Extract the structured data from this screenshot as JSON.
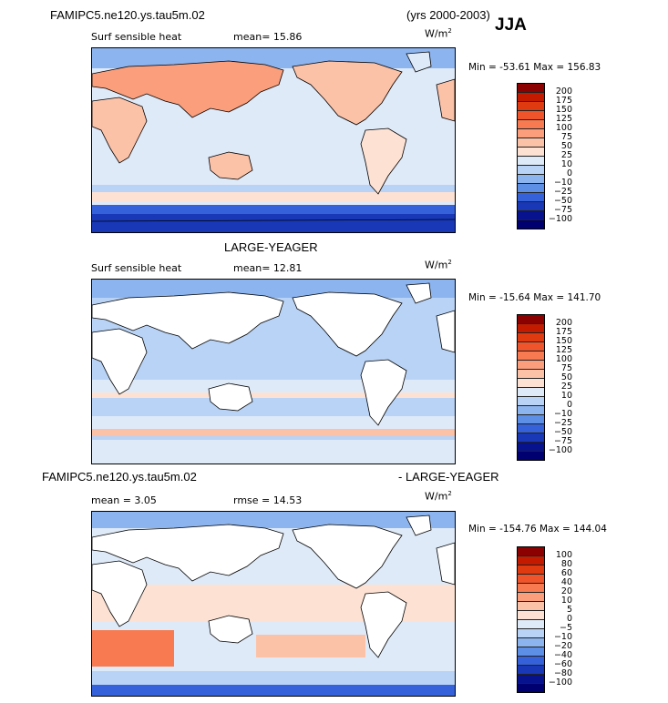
{
  "header": {
    "case_title": "FAMIPC5.ne120.ys.tau5m.02",
    "years": "(yrs 2000-2003)",
    "season": "JJA"
  },
  "panels": [
    {
      "id": "panel-1",
      "variable": "Surf sensible heat",
      "stat1": "mean=  15.86",
      "units": "W/m",
      "units_exp": "2",
      "minmax": "Min = -53.61 Max = 156.83",
      "colorbar_labels": [
        "200",
        "175",
        "150",
        "125",
        "100",
        "75",
        "50",
        "25",
        "10",
        "0",
        "−10",
        "−25",
        "−50",
        "−75",
        "−100"
      ]
    },
    {
      "id": "panel-2",
      "title": "LARGE-YEAGER",
      "variable": "Surf sensible heat",
      "stat1": "mean=  12.81",
      "units": "W/m",
      "units_exp": "2",
      "minmax": "Min = -15.64 Max = 141.70",
      "colorbar_labels": [
        "200",
        "175",
        "150",
        "125",
        "100",
        "75",
        "50",
        "25",
        "10",
        "0",
        "−10",
        "−25",
        "−50",
        "−75",
        "−100"
      ]
    },
    {
      "id": "panel-3",
      "title_left": "FAMIPC5.ne120.ys.tau5m.02",
      "title_right": "- LARGE-YEAGER",
      "stat1": "mean =    3.05",
      "stat2": "rmse =  14.53",
      "units": "W/m",
      "units_exp": "2",
      "minmax": "Min = -154.76 Max = 144.04",
      "colorbar_labels": [
        "100",
        "80",
        "60",
        "40",
        "20",
        "10",
        "5",
        "0",
        "−5",
        "−10",
        "−20",
        "−40",
        "−60",
        "−80",
        "−100"
      ]
    }
  ],
  "colors": {
    "colorbar": [
      "#8b0000",
      "#c41a00",
      "#e03a10",
      "#f0542a",
      "#f77a50",
      "#fa9e7c",
      "#fcc2a8",
      "#fde2d4",
      "#dfeaf9",
      "#b8d3f6",
      "#8cb4ef",
      "#5e8fe6",
      "#3561da",
      "#1838b8",
      "#07128f",
      "#000070"
    ],
    "land": "#ffffff",
    "ocean_warm": "#fcc2a8",
    "ocean_light": "#dfeaf9",
    "ocean_mid": "#b8d3f6",
    "ocean_cool": "#8cb4ef",
    "ice": "#3561da"
  }
}
